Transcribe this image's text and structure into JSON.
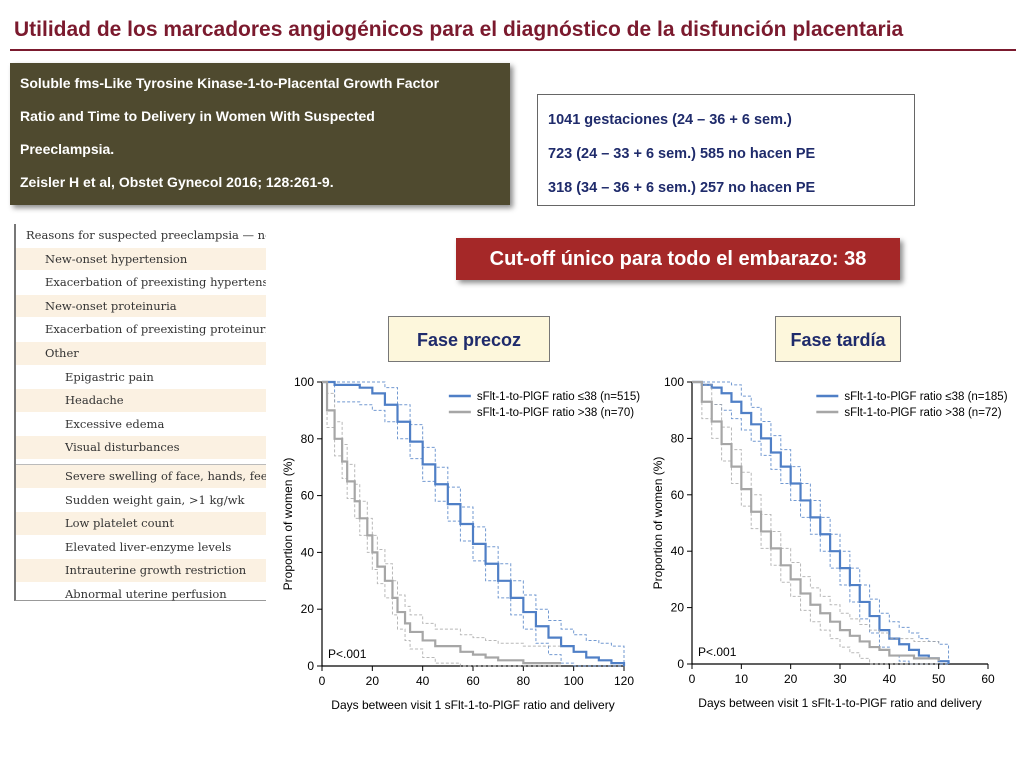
{
  "slide": {
    "title": "Utilidad de los marcadores angiogénicos para el diagnóstico de la disfunción placentaria",
    "reference": [
      "Soluble fms-Like Tyrosine Kinase-1-to-Placental Growth Factor",
      "Ratio and Time to Delivery in Women With Suspected",
      "Preeclampsia.",
      "Zeisler H et al, Obstet Gynecol 2016; 128:261-9."
    ],
    "stats": [
      "1041 gestaciones (24 – 36 + 6 sem.)",
      "723 (24 – 33 + 6 sem.) 585 no hacen PE",
      "318 (34 – 36 + 6 sem.) 257 no hacen PE"
    ],
    "cutoff": "Cut-off único para todo el embarazo: 38",
    "phase_early": "Fase precoz",
    "phase_late": "Fase tardía",
    "reasons": [
      {
        "text": "Reasons for suspected preeclampsia — no.",
        "level": 0
      },
      {
        "text": "New-onset hypertension",
        "level": 1
      },
      {
        "text": "Exacerbation of preexisting hypertension",
        "level": 1
      },
      {
        "text": "New-onset proteinuria",
        "level": 1
      },
      {
        "text": "Exacerbation of preexisting proteinuria",
        "level": 1
      },
      {
        "text": "Other",
        "level": 1
      },
      {
        "text": "Epigastric pain",
        "level": 2
      },
      {
        "text": "Headache",
        "level": 2
      },
      {
        "text": "Excessive edema",
        "level": 2
      },
      {
        "text": "Visual disturbances",
        "level": 2
      },
      {
        "text": "Severe swelling of face, hands, feet",
        "level": 2
      },
      {
        "text": "Sudden weight gain, >1 kg/wk",
        "level": 2
      },
      {
        "text": "Low platelet count",
        "level": 2
      },
      {
        "text": "Elevated liver-enzyme levels",
        "level": 2
      },
      {
        "text": "Intrauterine growth restriction",
        "level": 2
      },
      {
        "text": "Abnormal uterine perfusion",
        "level": 2
      }
    ],
    "colors": {
      "low_ratio": "#4f7fc6",
      "high_ratio": "#a6a6a6",
      "title": "#7b1a2e"
    }
  },
  "chart_data": [
    {
      "type": "line",
      "step": true,
      "xlabel": "Days between visit 1 sFlt-1-to-PlGF ratio and delivery",
      "ylabel": "Proportion of women (%)",
      "xlim": [
        0,
        120
      ],
      "ylim": [
        0,
        100
      ],
      "xticks": [
        0,
        20,
        40,
        60,
        80,
        100,
        120
      ],
      "yticks": [
        0,
        20,
        40,
        60,
        80,
        100
      ],
      "annotation": "P<.001",
      "legend_position": "top-right",
      "series": [
        {
          "name": "sFlt-1-to-PlGF ratio ≤38 (n=515)",
          "color": "#4f7fc6",
          "x": [
            0,
            5,
            10,
            15,
            20,
            25,
            30,
            35,
            40,
            45,
            50,
            55,
            60,
            65,
            70,
            75,
            80,
            85,
            90,
            95,
            100,
            105,
            110,
            115,
            120
          ],
          "y": [
            100,
            99,
            99,
            98,
            96,
            92,
            86,
            79,
            71,
            64,
            57,
            50,
            43,
            36,
            30,
            24,
            19,
            14,
            10,
            7,
            5,
            3,
            2,
            1,
            0
          ]
        },
        {
          "name": "sFlt-1-to-PlGF ratio >38 (n=70)",
          "color": "#a6a6a6",
          "x": [
            0,
            2,
            5,
            8,
            10,
            13,
            15,
            18,
            20,
            22,
            25,
            28,
            30,
            33,
            35,
            40,
            45,
            50,
            55,
            60,
            65,
            70,
            75,
            80,
            90,
            95
          ],
          "y": [
            100,
            90,
            80,
            72,
            65,
            58,
            52,
            46,
            40,
            35,
            30,
            24,
            19,
            15,
            12,
            9,
            7,
            7,
            5,
            4,
            3,
            2,
            2,
            1,
            1,
            1
          ]
        }
      ]
    },
    {
      "type": "line",
      "step": true,
      "xlabel": "Days between visit 1 sFlt-1-to-PlGF ratio and delivery",
      "ylabel": "Proportion of women (%)",
      "xlim": [
        0,
        60
      ],
      "ylim": [
        0,
        100
      ],
      "xticks": [
        0,
        10,
        20,
        30,
        40,
        50,
        60
      ],
      "yticks": [
        0,
        20,
        40,
        60,
        80,
        100
      ],
      "annotation": "P<.001",
      "legend_position": "top-right",
      "series": [
        {
          "name": "sFlt-1-to-PlGF ratio ≤38 (n=185)",
          "color": "#4f7fc6",
          "x": [
            0,
            2,
            4,
            6,
            8,
            10,
            12,
            14,
            16,
            18,
            20,
            22,
            24,
            26,
            28,
            30,
            32,
            34,
            36,
            38,
            40,
            42,
            44,
            46,
            48,
            50,
            52
          ],
          "y": [
            100,
            99,
            98,
            96,
            93,
            89,
            85,
            80,
            75,
            70,
            64,
            58,
            52,
            46,
            40,
            34,
            28,
            22,
            17,
            12,
            9,
            7,
            5,
            3,
            2,
            1,
            0
          ]
        },
        {
          "name": "sFlt-1-to-PlGF ratio >38 (n=72)",
          "color": "#a6a6a6",
          "x": [
            0,
            2,
            4,
            6,
            8,
            10,
            12,
            14,
            16,
            18,
            20,
            22,
            24,
            26,
            28,
            30,
            32,
            34,
            36,
            38,
            40,
            45,
            50
          ],
          "y": [
            100,
            93,
            86,
            78,
            70,
            62,
            54,
            47,
            41,
            35,
            30,
            25,
            21,
            18,
            15,
            12,
            10,
            8,
            6,
            5,
            3,
            2,
            1
          ]
        }
      ]
    }
  ]
}
